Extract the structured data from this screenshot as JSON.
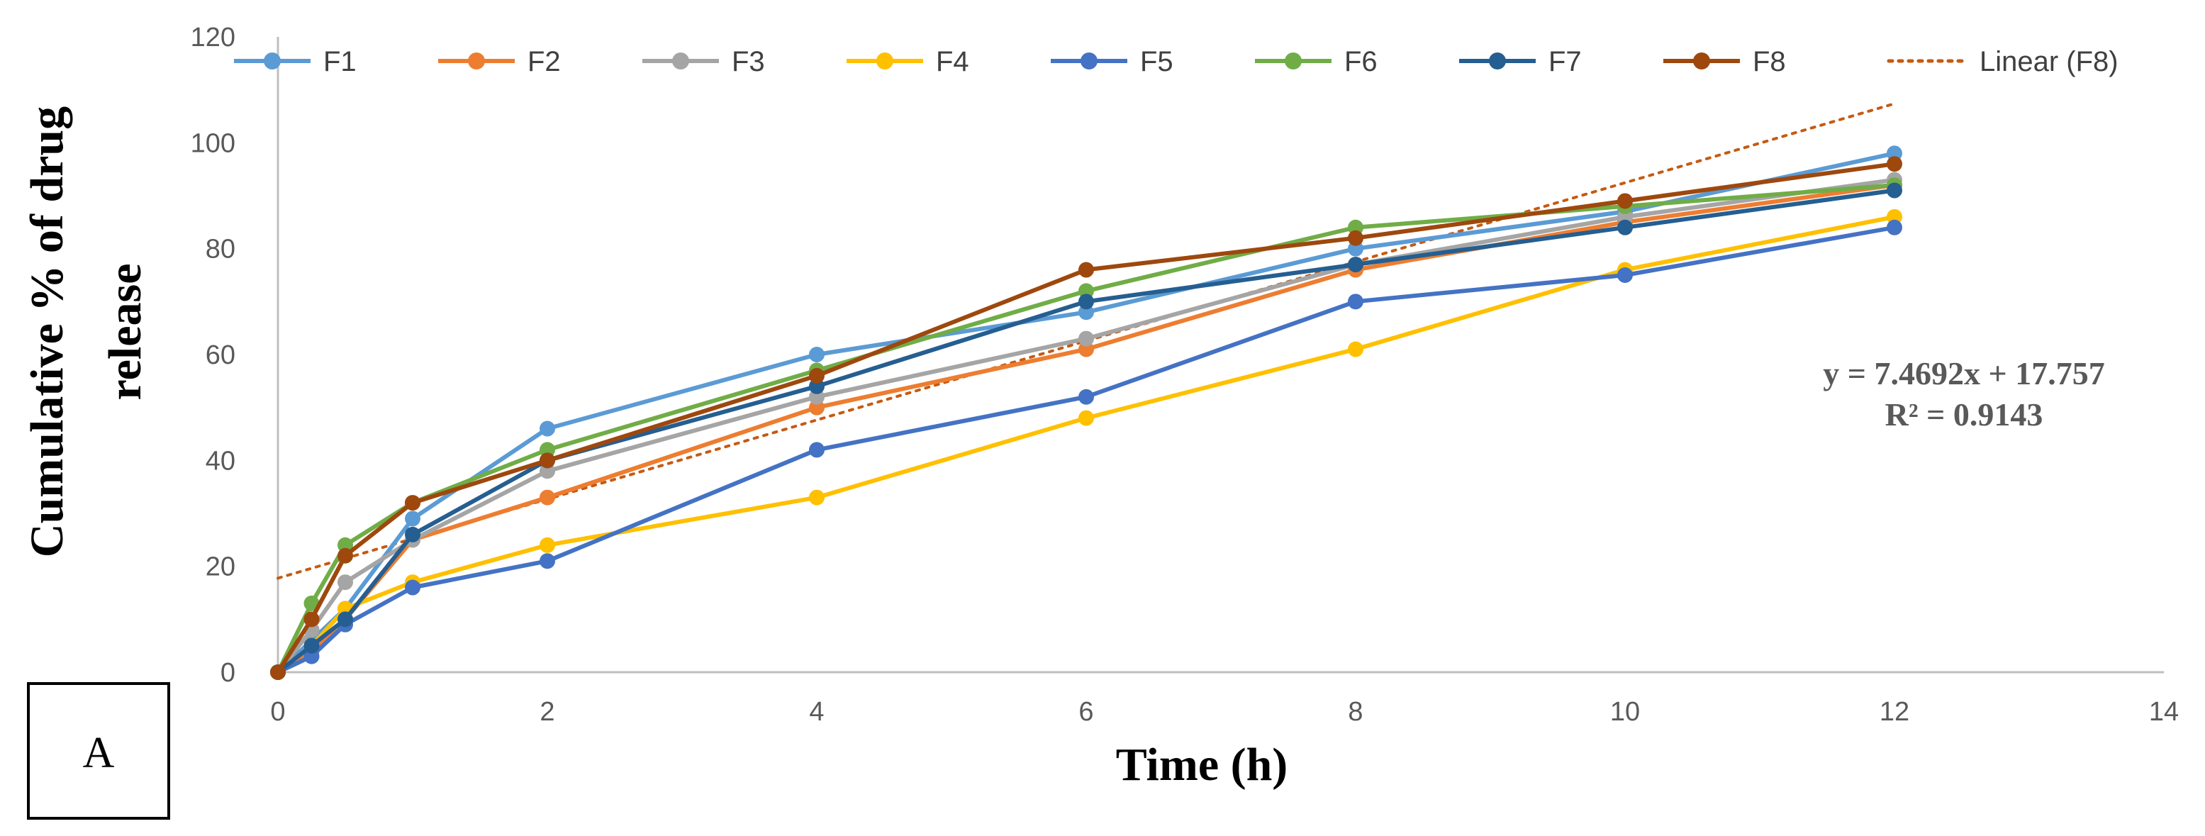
{
  "chart_data": {
    "type": "line",
    "title": "",
    "xlabel": "Time (h)",
    "ylabel_lines": [
      "Cumulative % of drug",
      "release"
    ],
    "xlim": [
      0,
      14
    ],
    "ylim": [
      0,
      120
    ],
    "xticks": [
      0,
      2,
      4,
      6,
      8,
      10,
      12,
      14
    ],
    "yticks": [
      0,
      20,
      40,
      60,
      80,
      100,
      120
    ],
    "grid": false,
    "legend_position": "top",
    "x": [
      0,
      0.25,
      0.5,
      1,
      2,
      4,
      6,
      8,
      10,
      12
    ],
    "series": [
      {
        "name": "F1",
        "color": "#5B9BD5",
        "values": [
          0,
          6,
          12,
          29,
          46,
          60,
          68,
          80,
          87,
          98
        ]
      },
      {
        "name": "F2",
        "color": "#ED7D31",
        "values": [
          0,
          4,
          10,
          25,
          33,
          50,
          61,
          76,
          85,
          92
        ]
      },
      {
        "name": "F3",
        "color": "#A5A5A5",
        "values": [
          0,
          8,
          17,
          25,
          38,
          52,
          63,
          77,
          86,
          93
        ]
      },
      {
        "name": "F4",
        "color": "#FFC000",
        "values": [
          0,
          5,
          12,
          17,
          24,
          33,
          48,
          61,
          76,
          86
        ]
      },
      {
        "name": "F5",
        "color": "#4472C4",
        "values": [
          0,
          3,
          9,
          16,
          21,
          42,
          52,
          70,
          75,
          84
        ]
      },
      {
        "name": "F6",
        "color": "#70AD47",
        "values": [
          0,
          13,
          24,
          32,
          42,
          57,
          72,
          84,
          88,
          92
        ]
      },
      {
        "name": "F7",
        "color": "#255E91",
        "values": [
          0,
          5,
          10,
          26,
          40,
          54,
          70,
          77,
          84,
          91
        ]
      },
      {
        "name": "F8",
        "color": "#9E480E",
        "values": [
          0,
          10,
          22,
          32,
          40,
          56,
          76,
          82,
          89,
          96
        ]
      }
    ],
    "trendline": {
      "name": "Linear (F8)",
      "color": "#C55A11",
      "slope": 7.4692,
      "intercept": 17.757,
      "x_range": [
        0,
        12
      ],
      "equation": "y = 7.4692x + 17.757",
      "r_squared": "R² = 0.9143"
    },
    "panel_label": "A"
  }
}
